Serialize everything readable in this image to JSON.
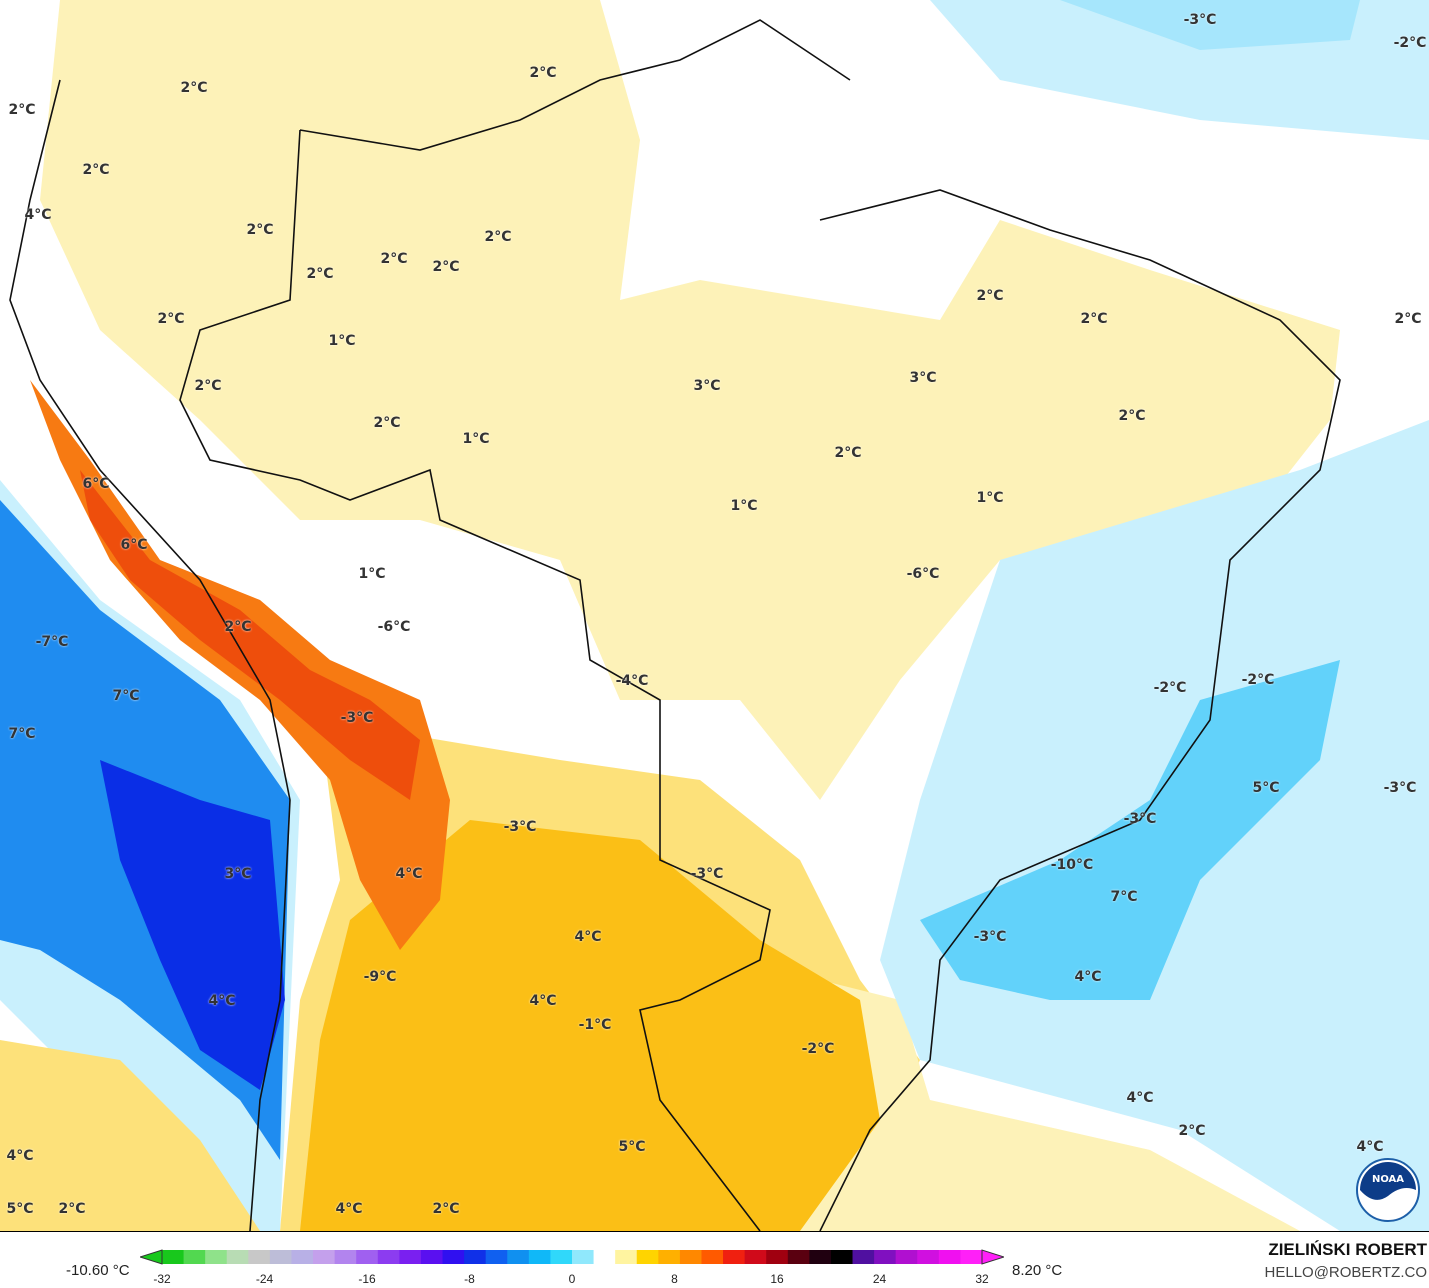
{
  "map": {
    "labels": [
      "2°C",
      "2°C",
      "2°C",
      "2°C",
      "-3°C",
      "-2°C",
      "4°C",
      "2°C",
      "2°C",
      "2°C",
      "2°C",
      "2°C",
      "2°C",
      "2°C",
      "1°C",
      "2°C",
      "2°C",
      "2°C",
      "3°C",
      "3°C",
      "2°C",
      "2°C",
      "1°C",
      "2°C",
      "1°C",
      "6°C",
      "6°C",
      "1°C",
      "1°C",
      "-6°C",
      "-6°C",
      "-7°C",
      "7°C",
      "7°C",
      "2°C",
      "-3°C",
      "-4°C",
      "-2°C",
      "-2°C",
      "5°C",
      "-3°C",
      "-3°C",
      "-3°C",
      "-10°C",
      "7°C",
      "3°C",
      "4°C",
      "-3°C",
      "4°C",
      "-3°C",
      "-9°C",
      "4°C",
      "4°C",
      "4°C",
      "-1°C",
      "-2°C",
      "4°C",
      "2°C",
      "4°C",
      "4°C",
      "5°C",
      "5°C",
      "2°C",
      "4°C",
      "2°C"
    ],
    "colors": {
      "cold_deep": "#0a2ee6",
      "cold": "#1f8cf0",
      "cool": "#62d2fa",
      "cool_light": "#c9f0fd",
      "warm_light": "#fdf2b8",
      "warm": "#fde17a",
      "orange": "#fbbf16",
      "hot": "#f77a12",
      "hot_deep": "#ee4e0c"
    }
  },
  "legend": {
    "min_label": "-10.60 °C",
    "max_label": "8.20 °C",
    "ticks": [
      "-32",
      "-24",
      "-16",
      "-8",
      "0",
      "8",
      "16",
      "24",
      "32"
    ],
    "range": [
      -32,
      32
    ],
    "colors": [
      "#18c81c",
      "#52d850",
      "#8fe28a",
      "#b8dcb4",
      "#c8c8c8",
      "#bdbdd8",
      "#b8b0e6",
      "#c4a0ec",
      "#b284ee",
      "#a060f0",
      "#8c3cf0",
      "#7a20f0",
      "#5a10f0",
      "#3010f0",
      "#1030e8",
      "#1060f0",
      "#1090f0",
      "#10b8f8",
      "#30d8fa",
      "#90e8fc",
      "#ffffff",
      "#fff4a0",
      "#ffd400",
      "#ffb000",
      "#ff8800",
      "#ff5a00",
      "#f02010",
      "#d00a1a",
      "#a00010",
      "#5a0010",
      "#200010",
      "#000000",
      "#5010a0",
      "#8010c0",
      "#b010d0",
      "#d010e0",
      "#f010f0",
      "#ff20f8"
    ]
  },
  "credit": {
    "author": "ZIELIŃSKI ROBERT",
    "email": "HELLO@ROBERTZ.CO",
    "logo_text": "NOAA"
  }
}
